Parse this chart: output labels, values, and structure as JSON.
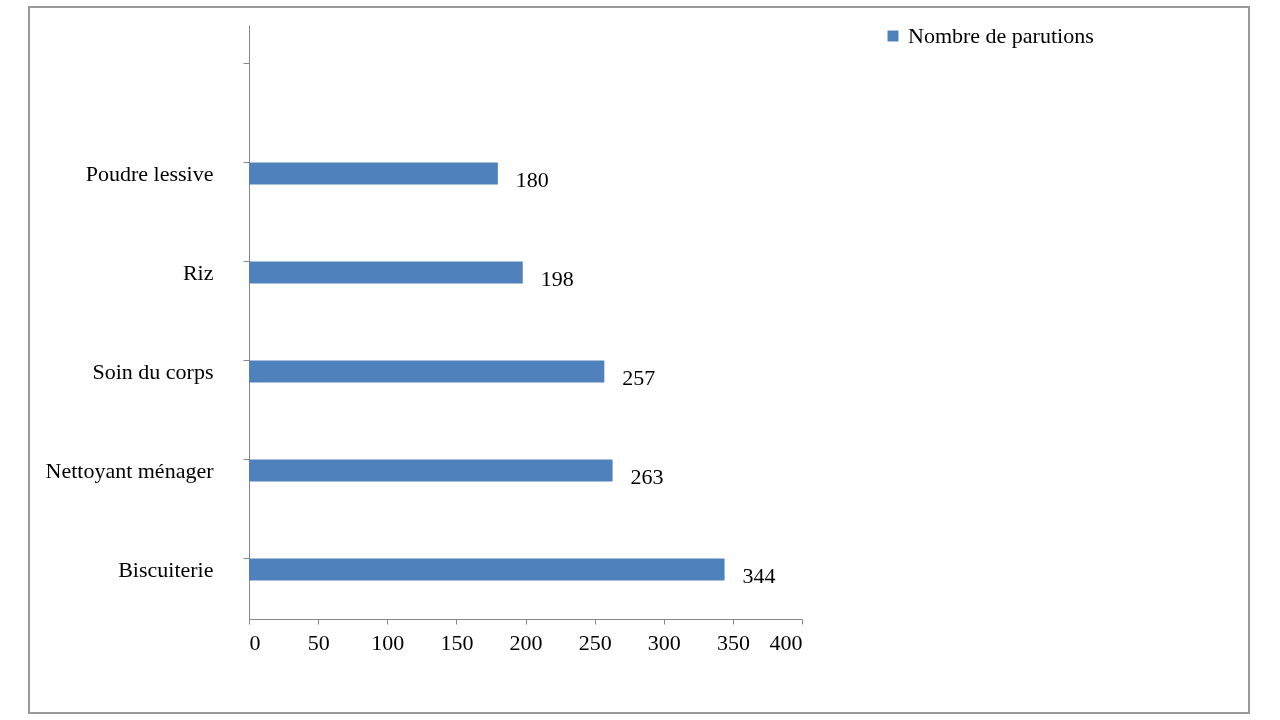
{
  "chart_data": {
    "type": "bar",
    "orientation": "horizontal",
    "categories": [
      null,
      "Poudre lessive",
      "Riz",
      "Soin du corps",
      "Nettoyant ménager",
      "Biscuiterie"
    ],
    "series": [
      {
        "name": "Nombre de parutions",
        "color": "#4f81bd",
        "values": [
          null,
          180,
          198,
          257,
          263,
          344
        ]
      }
    ],
    "xlim": [
      0,
      400
    ],
    "xticks": [
      0,
      50,
      100,
      150,
      200,
      250,
      300,
      350,
      400
    ],
    "grid": false,
    "legend": "right",
    "data_labels": true
  }
}
